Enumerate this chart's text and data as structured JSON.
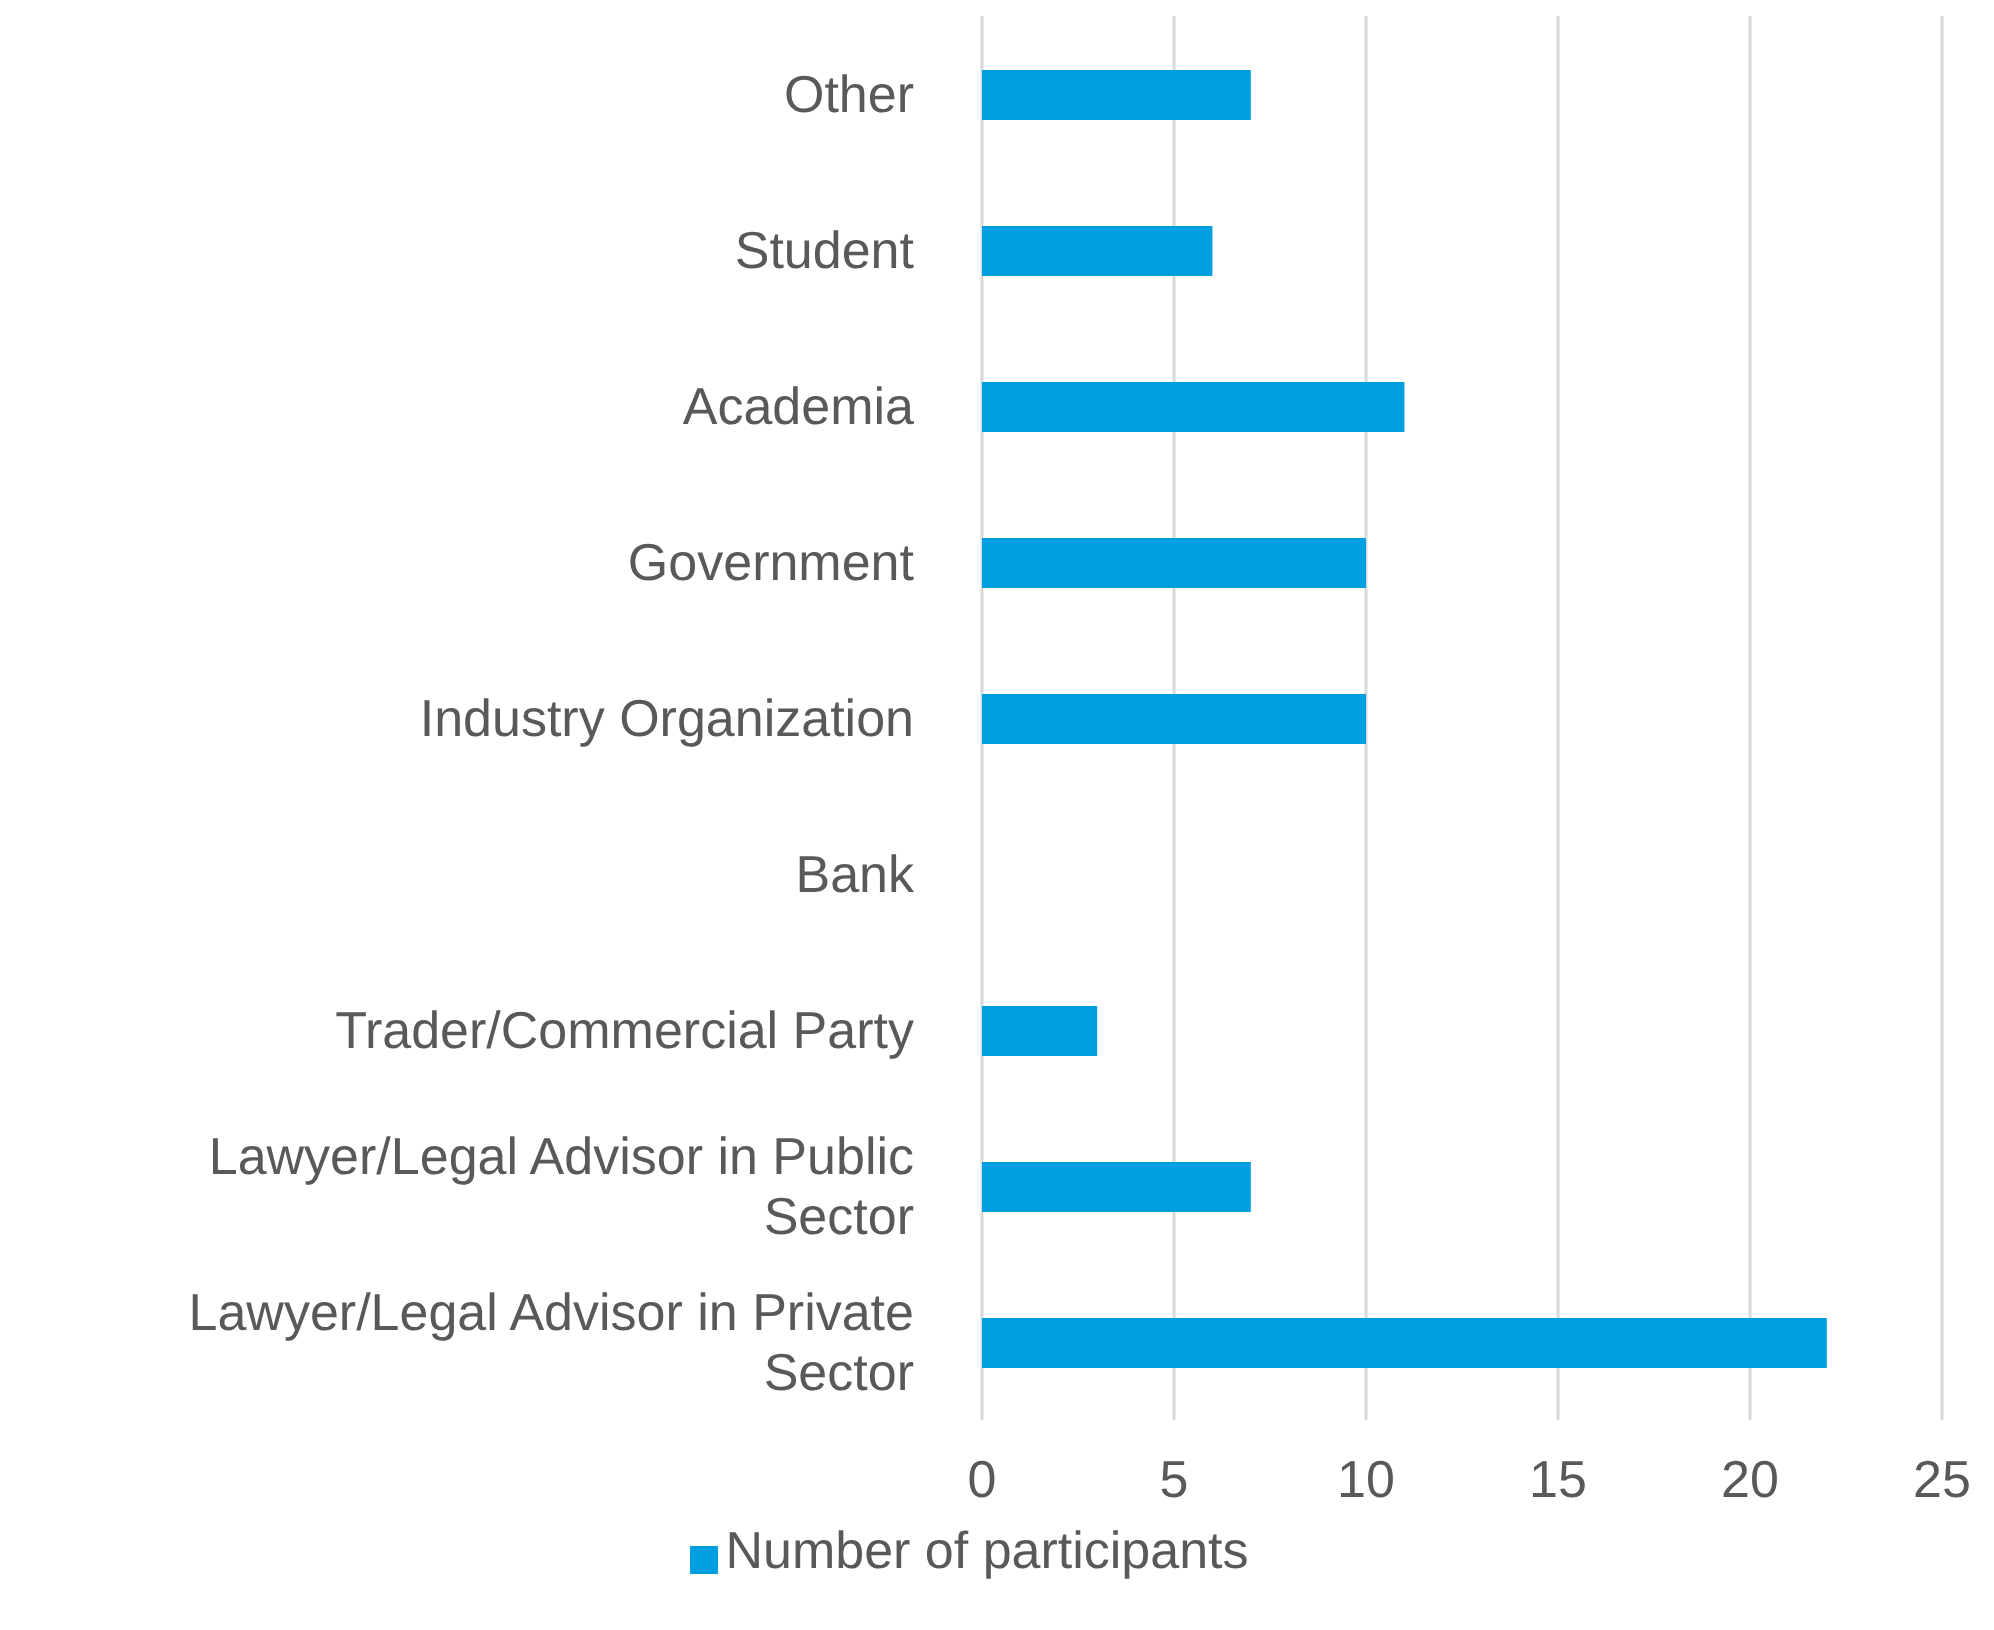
{
  "chart_data": {
    "type": "bar",
    "orientation": "horizontal",
    "categories": [
      "Other",
      "Student",
      "Academia",
      "Government",
      "Industry Organization",
      "Bank",
      "Trader/Commercial Party",
      "Lawyer/Legal Advisor in Public Sector",
      "Lawyer/Legal Advisor in Private Sector"
    ],
    "series": [
      {
        "name": "Number of participants",
        "color": "#009fdf",
        "values": [
          7,
          6,
          11,
          10,
          10,
          0,
          3,
          7,
          22
        ]
      }
    ],
    "xlim": [
      0,
      25
    ],
    "xticks": [
      0,
      5,
      10,
      15,
      20,
      25
    ],
    "grid": "x",
    "legend": "bottom"
  }
}
